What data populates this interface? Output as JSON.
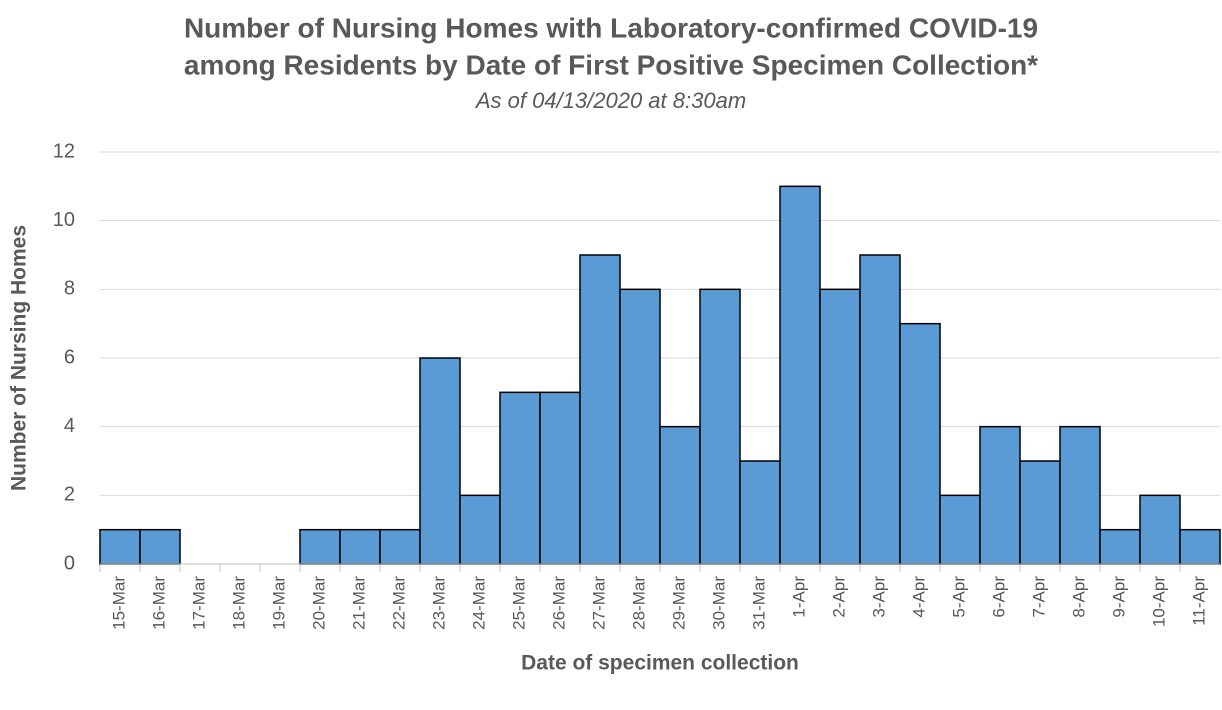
{
  "chart_data": {
    "type": "bar",
    "title": [
      "Number of Nursing Homes with Laboratory-confirmed COVID-19",
      "among Residents by Date of First Positive Specimen Collection*"
    ],
    "subtitle": "As of 04/13/2020 at 8:30am",
    "x_label": "Date of specimen collection",
    "y_label": "Number of Nursing Homes",
    "categories": [
      "15-Mar",
      "16-Mar",
      "17-Mar",
      "18-Mar",
      "19-Mar",
      "20-Mar",
      "21-Mar",
      "22-Mar",
      "23-Mar",
      "24-Mar",
      "25-Mar",
      "26-Mar",
      "27-Mar",
      "28-Mar",
      "29-Mar",
      "30-Mar",
      "31-Mar",
      "1-Apr",
      "2-Apr",
      "3-Apr",
      "4-Apr",
      "5-Apr",
      "6-Apr",
      "7-Apr",
      "8-Apr",
      "9-Apr",
      "10-Apr",
      "11-Apr"
    ],
    "values": [
      1,
      1,
      0,
      0,
      0,
      1,
      1,
      1,
      6,
      2,
      5,
      5,
      9,
      8,
      4,
      8,
      3,
      11,
      8,
      9,
      7,
      2,
      4,
      3,
      4,
      1,
      2,
      1
    ],
    "color": "#5b9bd5",
    "ylim": [
      0,
      12
    ],
    "yticks": [
      0,
      2,
      4,
      6,
      8,
      10,
      12
    ],
    "grid": true
  }
}
